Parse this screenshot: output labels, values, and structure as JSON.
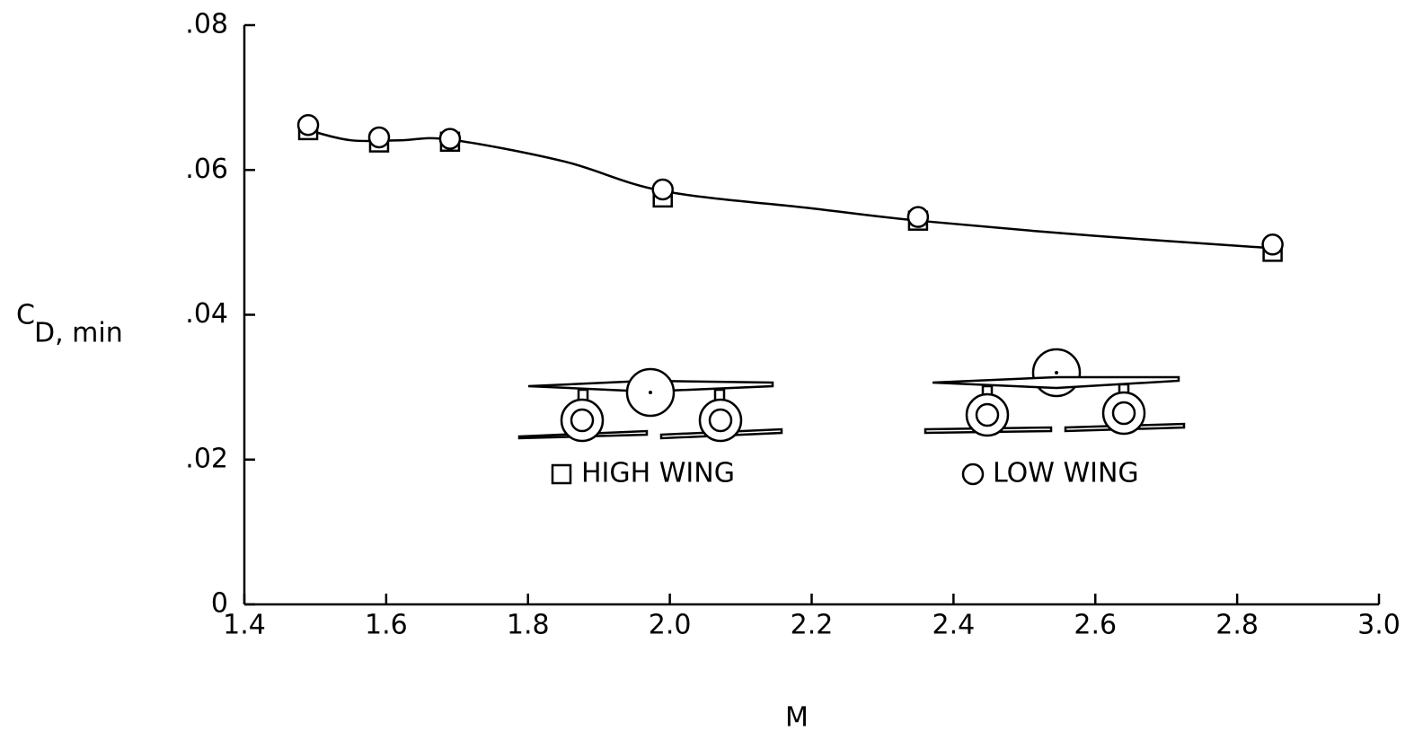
{
  "chart_data": {
    "type": "scatter",
    "ylabel": {
      "main": "C",
      "subscript": "D, min"
    },
    "xlabel": "M",
    "xlim": [
      1.4,
      3.0
    ],
    "xticks": [
      1.4,
      1.6,
      1.8,
      {
        "value": 2.0,
        "label": "2.0"
      },
      2.2,
      2.4,
      2.6,
      2.8,
      {
        "value": 3.0,
        "label": "3.0"
      }
    ],
    "ylim": [
      0,
      0.08
    ],
    "yticks": [
      0,
      {
        "value": 0.02,
        "label": ".02"
      },
      {
        "value": 0.04,
        "label": ".04"
      },
      {
        "value": 0.06,
        "label": ".06"
      },
      {
        "value": 0.08,
        "label": ".08"
      }
    ],
    "series": [
      {
        "name": "HIGH WING",
        "marker": "square",
        "color": "#000000",
        "x": [
          1.49,
          1.59,
          1.69,
          1.99,
          2.35,
          2.85
        ],
        "values": [
          0.0655,
          0.0638,
          0.0639,
          0.0562,
          0.053,
          0.0487
        ]
      },
      {
        "name": "LOW WING",
        "marker": "circle",
        "color": "#000000",
        "x": [
          1.49,
          1.59,
          1.69,
          1.99,
          2.35,
          2.85
        ],
        "values": [
          0.0662,
          0.0645,
          0.0643,
          0.0573,
          0.0535,
          0.0497
        ]
      }
    ],
    "fairing": {
      "color": "#000000",
      "x": [
        1.49,
        1.55,
        1.62,
        1.69,
        1.85,
        1.99,
        2.2,
        2.35,
        2.6,
        2.85
      ],
      "values": [
        0.0655,
        0.0641,
        0.0641,
        0.0642,
        0.0612,
        0.0571,
        0.0547,
        0.053,
        0.0509,
        0.0492
      ]
    }
  }
}
